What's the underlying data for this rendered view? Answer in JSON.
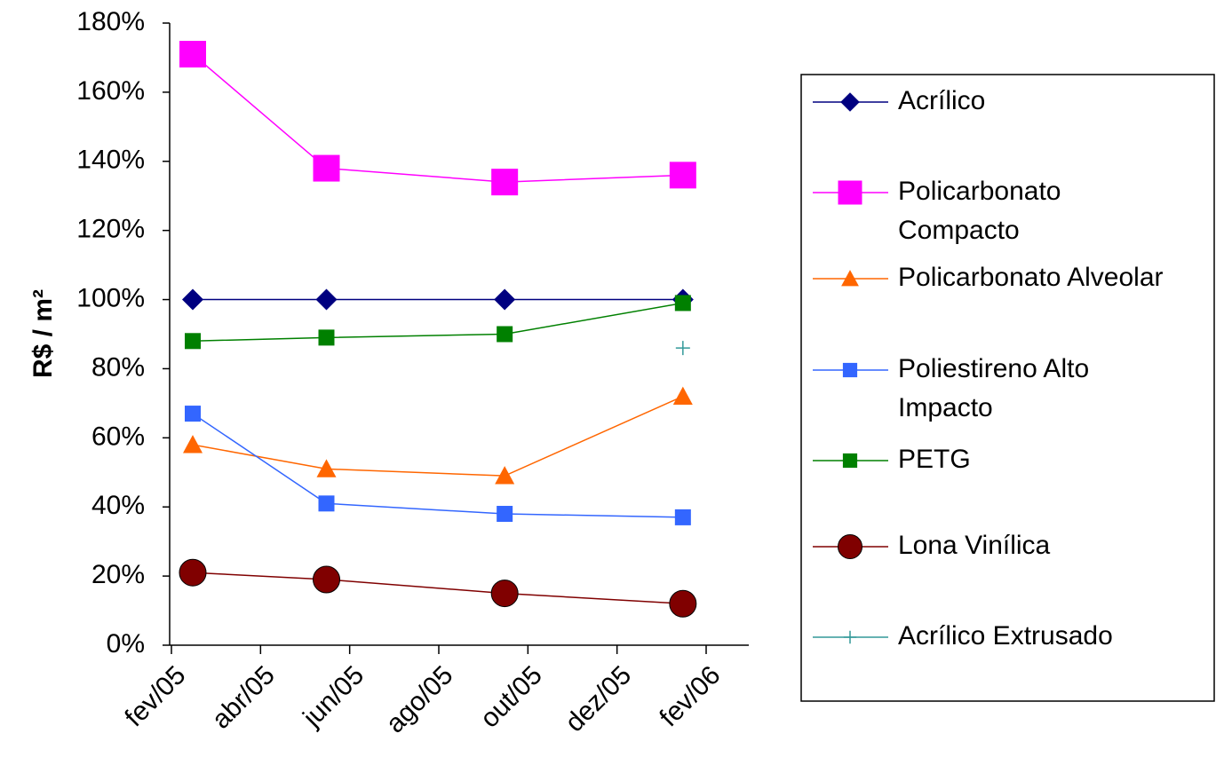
{
  "chart_data": {
    "type": "line",
    "title": "",
    "xlabel": "",
    "ylabel": "R$ / m²",
    "x_ticks": [
      "fev/05",
      "abr/05",
      "jun/05",
      "ago/05",
      "out/05",
      "dez/05",
      "fev/06"
    ],
    "y_ticks": [
      "0%",
      "20%",
      "40%",
      "60%",
      "80%",
      "100%",
      "120%",
      "140%",
      "160%",
      "180%"
    ],
    "ylim": [
      0,
      180
    ],
    "y_unit": "%",
    "grid": false,
    "legend_position": "right",
    "series": [
      {
        "name": "Acrílico",
        "marker": "diamond",
        "color": "#000080",
        "marker_color": "#000080",
        "points": [
          [
            "fev/05",
            100
          ],
          [
            "mai/05",
            100
          ],
          [
            "set/05",
            100
          ],
          [
            "jan/06",
            100
          ]
        ]
      },
      {
        "name": "Policarbonato Compacto",
        "marker": "square",
        "color": "#FF00FF",
        "marker_color": "#FF00FF",
        "points": [
          [
            "fev/05",
            171
          ],
          [
            "mai/05",
            138
          ],
          [
            "set/05",
            134
          ],
          [
            "jan/06",
            136
          ]
        ]
      },
      {
        "name": "Policarbonato Alveolar",
        "marker": "triangle",
        "color": "#FF6600",
        "marker_color": "#FF6600",
        "points": [
          [
            "fev/05",
            58
          ],
          [
            "mai/05",
            51
          ],
          [
            "set/05",
            49
          ],
          [
            "jan/06",
            72
          ]
        ]
      },
      {
        "name": "Poliestireno Alto Impacto",
        "marker": "square-small",
        "color": "#3366FF",
        "marker_color": "#3366FF",
        "points": [
          [
            "fev/05",
            67
          ],
          [
            "mai/05",
            41
          ],
          [
            "set/05",
            38
          ],
          [
            "jan/06",
            37
          ]
        ]
      },
      {
        "name": "PETG",
        "marker": "square-small",
        "color": "#008000",
        "marker_color": "#008000",
        "points": [
          [
            "fev/05",
            88
          ],
          [
            "mai/05",
            89
          ],
          [
            "set/05",
            90
          ],
          [
            "jan/06",
            99
          ]
        ]
      },
      {
        "name": "Lona Vinílica",
        "marker": "circle",
        "color": "#800000",
        "marker_color": "#800000",
        "points": [
          [
            "fev/05",
            21
          ],
          [
            "mai/05",
            19
          ],
          [
            "set/05",
            15
          ],
          [
            "jan/06",
            12
          ]
        ]
      },
      {
        "name": "Acrílico Extrusado",
        "marker": "plus",
        "color": "#339999",
        "marker_color": "#339999",
        "points": [
          [
            "jan/06",
            86
          ]
        ]
      }
    ]
  }
}
